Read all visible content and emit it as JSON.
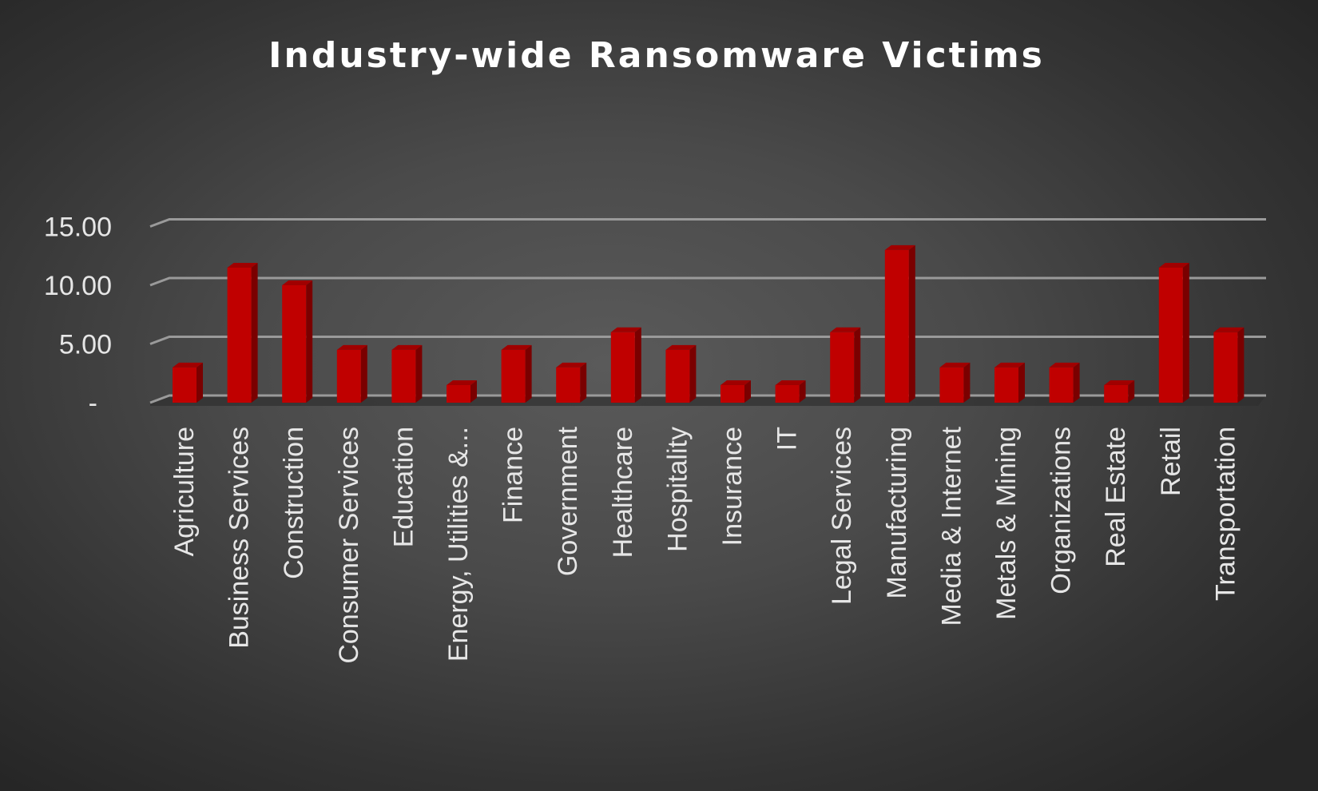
{
  "chart_data": {
    "type": "bar",
    "title": "Industry-wide Ransomware Victims",
    "xlabel": "",
    "ylabel": "",
    "categories": [
      "Agriculture",
      "Business Services",
      "Construction",
      "Consumer Services",
      "Education",
      "Energy, Utilities &...",
      "Finance",
      "Government",
      "Healthcare",
      "Hospitality",
      "Insurance",
      "IT",
      "Legal Services",
      "Manufacturing",
      "Media & Internet",
      "Metals & Mining",
      "Organizations",
      "Real Estate",
      "Retail",
      "Transportation"
    ],
    "values": [
      3,
      11.5,
      10,
      4.5,
      4.5,
      1.5,
      4.5,
      3,
      6,
      4.5,
      1.5,
      1.5,
      6,
      13,
      3,
      3,
      3,
      1.5,
      11.5,
      6
    ],
    "ylim": [
      0,
      15
    ],
    "yticks": [
      {
        "value": 0,
        "label": "-"
      },
      {
        "value": 5,
        "label": "5.00"
      },
      {
        "value": 10,
        "label": "10.00"
      },
      {
        "value": 15,
        "label": "15.00"
      }
    ],
    "grid": true,
    "legend": "none",
    "bar_color": "#c00000",
    "bar_side_color": "#7a0000",
    "bar_top_color": "#a00000",
    "grid_color": "#9a9a9a",
    "text_color": "#ffffff",
    "tick_label_color": "#e6e6e6"
  }
}
